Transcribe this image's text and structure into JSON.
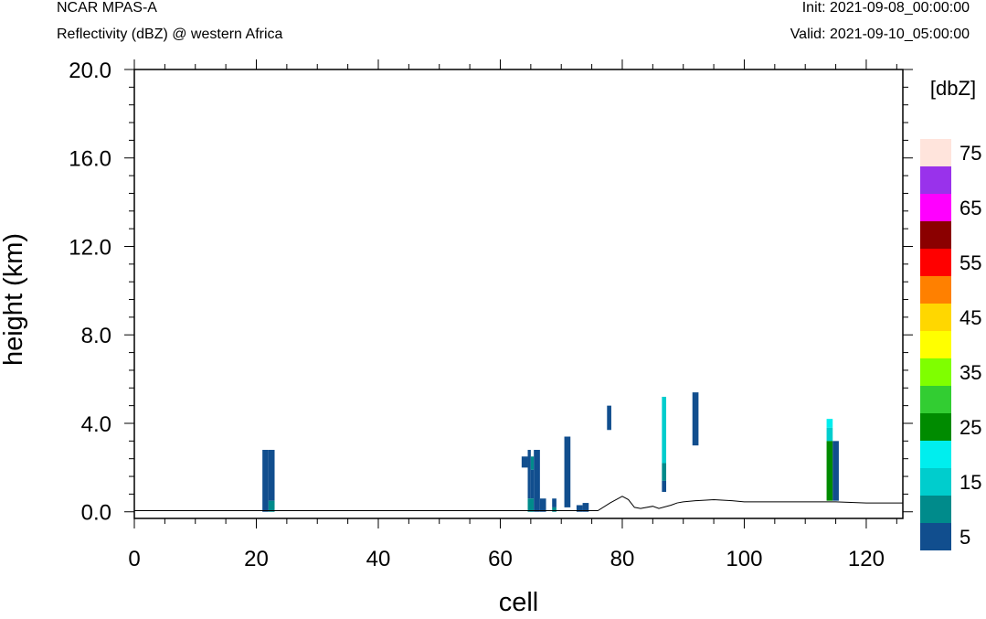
{
  "header": {
    "model": "NCAR MPAS-A",
    "field": "Reflectivity (dBZ) @ western Africa",
    "init": "Init: 2021-09-08_00:00:00",
    "valid": "Valid: 2021-09-10_05:00:00"
  },
  "chart_data": {
    "type": "heatmap",
    "xlabel": "cell",
    "ylabel": "height (km)",
    "xlim": [
      0,
      126
    ],
    "ylim": [
      -0.3,
      20.0
    ],
    "xticks": [
      "0",
      "20",
      "40",
      "60",
      "80",
      "100",
      "120"
    ],
    "xtick_values": [
      0,
      20,
      40,
      60,
      80,
      100,
      120
    ],
    "yticks": [
      "0.0",
      "4.0",
      "8.0",
      "12.0",
      "16.0",
      "20.0"
    ],
    "ytick_values": [
      0,
      4,
      8,
      12,
      16,
      20
    ],
    "colorbar": {
      "unit": "[dbZ]",
      "labels": [
        "5",
        "15",
        "25",
        "35",
        "45",
        "55",
        "65",
        "75"
      ],
      "label_values": [
        5,
        15,
        25,
        35,
        45,
        55,
        65,
        75
      ],
      "levels": [
        5,
        10,
        15,
        20,
        25,
        30,
        35,
        40,
        45,
        50,
        55,
        60,
        65,
        70,
        75
      ],
      "colors": [
        "#114e8e",
        "#008b8b",
        "#00cdcd",
        "#00eeee",
        "#008b00",
        "#32cd32",
        "#7fff00",
        "#ffff00",
        "#ffd700",
        "#ff8000",
        "#ff0000",
        "#8b0000",
        "#ff00ff",
        "#9932eb",
        "#ffe4dc"
      ]
    },
    "reflectivity_cells": [
      {
        "x0": 21,
        "x1": 22,
        "y0": 0,
        "y1": 2.8,
        "dbz": 5
      },
      {
        "x0": 22,
        "x1": 23,
        "y0": 0.5,
        "y1": 2.8,
        "dbz": 5
      },
      {
        "x0": 22,
        "x1": 23,
        "y0": 0,
        "y1": 0.5,
        "dbz": 10
      },
      {
        "x0": 63.5,
        "x1": 64.5,
        "y0": 2.0,
        "y1": 2.5,
        "dbz": 5
      },
      {
        "x0": 64.5,
        "x1": 65,
        "y0": 0.6,
        "y1": 2.8,
        "dbz": 5
      },
      {
        "x0": 65,
        "x1": 65.5,
        "y0": 1.9,
        "y1": 2.5,
        "dbz": 10
      },
      {
        "x0": 65,
        "x1": 65.5,
        "y0": 0.6,
        "y1": 1.9,
        "dbz": 5
      },
      {
        "x0": 64.5,
        "x1": 65.5,
        "y0": 0,
        "y1": 0.6,
        "dbz": 10
      },
      {
        "x0": 65.5,
        "x1": 66.5,
        "y0": 0,
        "y1": 2.8,
        "dbz": 5
      },
      {
        "x0": 66.5,
        "x1": 67.5,
        "y0": 0,
        "y1": 0.6,
        "dbz": 5
      },
      {
        "x0": 68.5,
        "x1": 69.2,
        "y0": 0.2,
        "y1": 0.6,
        "dbz": 5
      },
      {
        "x0": 68.5,
        "x1": 69.2,
        "y0": 0,
        "y1": 0.2,
        "dbz": 10
      },
      {
        "x0": 70.5,
        "x1": 71.5,
        "y0": 0.2,
        "y1": 3.4,
        "dbz": 5
      },
      {
        "x0": 72.5,
        "x1": 73.5,
        "y0": 0,
        "y1": 0.3,
        "dbz": 5
      },
      {
        "x0": 73.5,
        "x1": 74.5,
        "y0": 0,
        "y1": 0.4,
        "dbz": 5
      },
      {
        "x0": 77.5,
        "x1": 78.2,
        "y0": 3.7,
        "y1": 4.8,
        "dbz": 5
      },
      {
        "x0": 86.5,
        "x1": 87.2,
        "y0": 2.2,
        "y1": 5.2,
        "dbz": 15
      },
      {
        "x0": 86.5,
        "x1": 87.2,
        "y0": 1.4,
        "y1": 2.2,
        "dbz": 10
      },
      {
        "x0": 86.5,
        "x1": 87.2,
        "y0": 0.9,
        "y1": 1.4,
        "dbz": 5
      },
      {
        "x0": 91.5,
        "x1": 92.5,
        "y0": 3.0,
        "y1": 5.4,
        "dbz": 5
      },
      {
        "x0": 113.5,
        "x1": 114.5,
        "y0": 3.8,
        "y1": 4.2,
        "dbz": 20
      },
      {
        "x0": 113.5,
        "x1": 114.5,
        "y0": 3.2,
        "y1": 3.8,
        "dbz": 15
      },
      {
        "x0": 113.5,
        "x1": 114.5,
        "y0": 0.5,
        "y1": 3.2,
        "dbz": 25
      },
      {
        "x0": 114.5,
        "x1": 115.5,
        "y0": 0.5,
        "y1": 3.2,
        "dbz": 5
      }
    ],
    "terrain": {
      "x": [
        0,
        65,
        76,
        78,
        80,
        81,
        82,
        83,
        85,
        86,
        88,
        89,
        90,
        92,
        95,
        98,
        100,
        110,
        115,
        120,
        126
      ],
      "y": [
        0.05,
        0.05,
        0.05,
        0.4,
        0.7,
        0.55,
        0.2,
        0.15,
        0.25,
        0.15,
        0.3,
        0.4,
        0.45,
        0.5,
        0.55,
        0.5,
        0.45,
        0.45,
        0.45,
        0.4,
        0.4
      ]
    }
  }
}
